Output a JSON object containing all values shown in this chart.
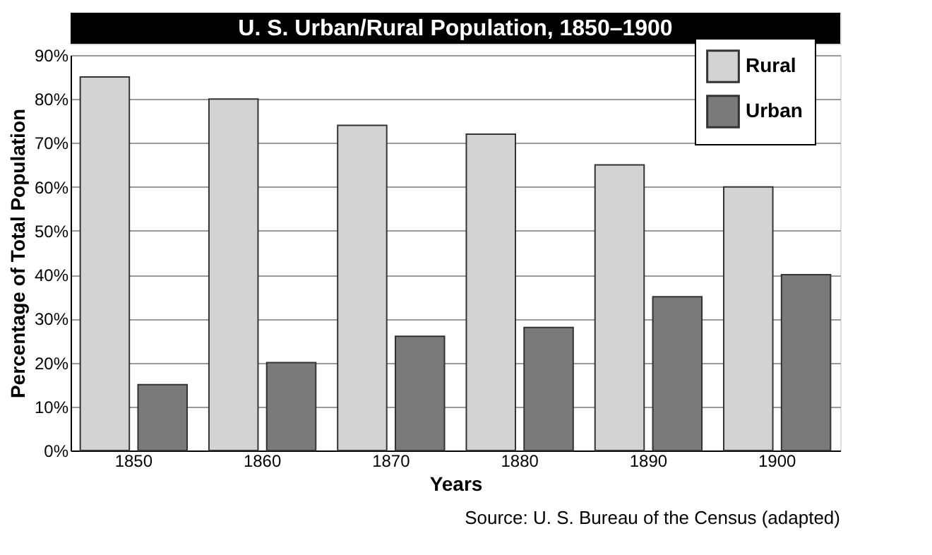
{
  "chart_data": {
    "type": "bar",
    "title": "U. S. Urban/Rural Population, 1850–1900",
    "xlabel": "Years",
    "ylabel": "Percentage of Total Population",
    "categories": [
      "1850",
      "1860",
      "1870",
      "1880",
      "1890",
      "1900"
    ],
    "series": [
      {
        "name": "Rural",
        "color": "#d3d3d3",
        "values": [
          85,
          80,
          74,
          72,
          65,
          60
        ]
      },
      {
        "name": "Urban",
        "color": "#7a7a7a",
        "values": [
          15,
          20,
          26,
          28,
          35,
          40
        ]
      }
    ],
    "ylim": [
      0,
      90
    ],
    "yticks": [
      {
        "value": 0,
        "label": "0%"
      },
      {
        "value": 10,
        "label": "10%"
      },
      {
        "value": 20,
        "label": "20%"
      },
      {
        "value": 30,
        "label": "30%"
      },
      {
        "value": 40,
        "label": "40%"
      },
      {
        "value": 50,
        "label": "50%"
      },
      {
        "value": 60,
        "label": "60%"
      },
      {
        "value": 70,
        "label": "70%"
      },
      {
        "value": 80,
        "label": "80%"
      },
      {
        "value": 90,
        "label": "90%"
      }
    ],
    "grid": "y",
    "legend": "top right",
    "annotations": [
      "Source: U. S. Bureau of the Census (adapted)"
    ]
  }
}
